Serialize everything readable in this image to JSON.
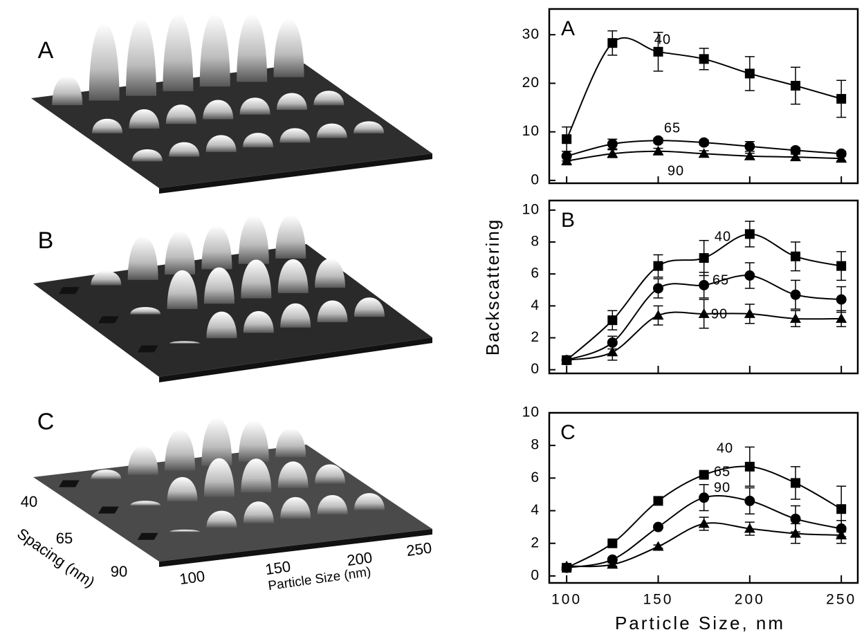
{
  "surface_plots": {
    "panel_labels": [
      "A",
      "B",
      "C"
    ],
    "spacing_ticks": [
      "40",
      "65",
      "90"
    ],
    "spacing_label": "Spacing (nm)",
    "size_ticks": [
      "100",
      "150",
      "200",
      "250"
    ],
    "size_label": "Particle Size (nm)"
  },
  "shared_axes": {
    "y_label": "Backscattering",
    "x_label": "Particle Size, nm"
  },
  "chart_data": [
    {
      "type": "line",
      "title": "A",
      "x": [
        100,
        125,
        150,
        175,
        200,
        225,
        250
      ],
      "xlim": [
        90.5,
        259
      ],
      "ylim": [
        -0.3,
        35.3
      ],
      "xticks": [
        100,
        150,
        200,
        250
      ],
      "xtick_labels": false,
      "yticks": [
        0,
        10,
        20,
        30
      ],
      "series": [
        {
          "name": "40",
          "marker": "square",
          "color": "#000000",
          "values": [
            8.5,
            28.3,
            26.5,
            25,
            22,
            19.5,
            16.8
          ],
          "errors": [
            2.5,
            2.5,
            4,
            2.2,
            3.5,
            3.8,
            3.8
          ]
        },
        {
          "name": "65",
          "marker": "circle",
          "color": "#000000",
          "values": [
            5,
            7.5,
            8.2,
            7.8,
            7,
            6.2,
            5.5
          ],
          "errors": [
            1,
            1,
            0.5,
            0.5,
            1,
            0.5,
            0.5
          ]
        },
        {
          "name": "90",
          "marker": "triangle",
          "color": "#000000",
          "values": [
            4,
            5.5,
            6,
            5.5,
            5,
            4.8,
            4.5
          ],
          "errors": [
            0.8,
            0.8,
            0.6,
            0.6,
            0.6,
            0.6,
            0.5
          ]
        }
      ]
    },
    {
      "type": "line",
      "title": "B",
      "x": [
        100,
        125,
        150,
        175,
        200,
        225,
        250
      ],
      "xlim": [
        90.5,
        259
      ],
      "ylim": [
        -0.1,
        10.6
      ],
      "xticks": [
        100,
        150,
        200,
        250
      ],
      "xtick_labels": false,
      "yticks": [
        0,
        2,
        4,
        6,
        8,
        10
      ],
      "series": [
        {
          "name": "40",
          "marker": "square",
          "color": "#000000",
          "values": [
            0.6,
            3.1,
            6.5,
            7,
            8.5,
            7.1,
            6.5
          ],
          "errors": [
            0.1,
            0.6,
            0.7,
            1.1,
            0.8,
            0.9,
            0.9
          ]
        },
        {
          "name": "65",
          "marker": "circle",
          "color": "#000000",
          "values": [
            0.6,
            1.7,
            5.1,
            5.3,
            5.9,
            4.7,
            4.4
          ],
          "errors": [
            0.1,
            0.4,
            0.6,
            0.8,
            0.8,
            0.9,
            0.8
          ]
        },
        {
          "name": "90",
          "marker": "triangle",
          "color": "#000000",
          "values": [
            0.6,
            1.1,
            3.4,
            3.5,
            3.5,
            3.2,
            3.2
          ],
          "errors": [
            0.1,
            0.5,
            0.6,
            0.9,
            0.6,
            0.5,
            0.5
          ]
        }
      ]
    },
    {
      "type": "line",
      "title": "C",
      "x": [
        100,
        125,
        150,
        175,
        200,
        225,
        250
      ],
      "xlim": [
        90.5,
        259
      ],
      "ylim": [
        -0.3,
        10
      ],
      "xticks": [
        100,
        150,
        200,
        250
      ],
      "xtick_labels": true,
      "yticks": [
        0,
        2,
        4,
        6,
        8,
        10
      ],
      "series": [
        {
          "name": "40",
          "marker": "square",
          "color": "#000000",
          "values": [
            0.5,
            2,
            4.6,
            6.2,
            6.7,
            5.7,
            4.1
          ],
          "errors": [
            0.1,
            0.1,
            0.1,
            0.1,
            1.2,
            1,
            1.4
          ]
        },
        {
          "name": "65",
          "marker": "circle",
          "color": "#000000",
          "values": [
            0.5,
            1,
            3,
            4.8,
            4.6,
            3.5,
            2.9
          ],
          "errors": [
            0.1,
            0.1,
            0.1,
            0.8,
            0.8,
            0.8,
            0.5
          ]
        },
        {
          "name": "90",
          "marker": "triangle",
          "color": "#000000",
          "values": [
            0.6,
            0.7,
            1.8,
            3.2,
            2.9,
            2.6,
            2.5
          ],
          "errors": [
            0.1,
            0.1,
            0.1,
            0.4,
            0.4,
            0.6,
            0.5
          ]
        }
      ]
    }
  ]
}
